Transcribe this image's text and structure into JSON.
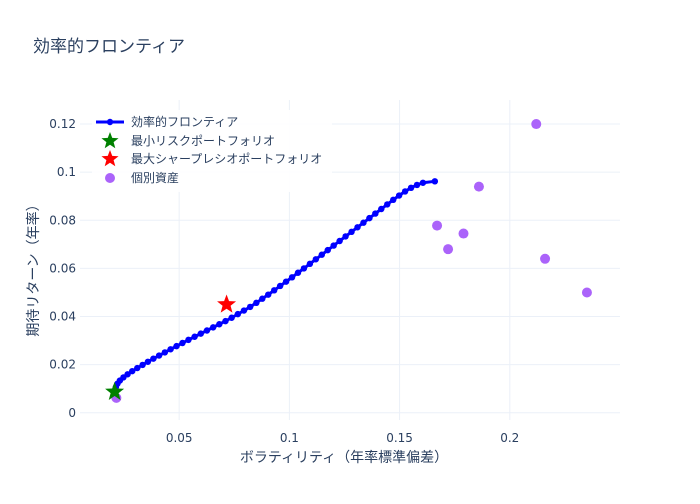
{
  "chart_data": {
    "type": "scatter",
    "title": "効率的フロンティア",
    "xlabel": "ボラティリティ（年率標準偏差）",
    "ylabel": "期待リターン（年率）",
    "xlim": [
      0.005,
      0.25
    ],
    "ylim": [
      -0.003,
      0.13
    ],
    "x_ticks": [
      0.05,
      0.1,
      0.15,
      0.2
    ],
    "x_tick_labels": [
      "0.05",
      "0.1",
      "0.15",
      "0.2"
    ],
    "y_ticks": [
      0,
      0.02,
      0.04,
      0.06,
      0.08,
      0.1,
      0.12
    ],
    "y_tick_labels": [
      "0",
      "0.02",
      "0.04",
      "0.06",
      "0.08",
      "0.1",
      "0.12"
    ],
    "grid": true,
    "legend_position": "top-left",
    "colors": {
      "frontier": "#0000ff",
      "min_risk": "#008000",
      "max_sharpe": "#ff0000",
      "assets": "#ab63fa",
      "grid": "#ebf0f8",
      "text": "#2a3f5f"
    },
    "series": [
      {
        "name": "効率的フロンティア",
        "kind": "line+markers",
        "points": [
          [
            0.0207,
            0.0087
          ],
          [
            0.0213,
            0.0107
          ],
          [
            0.022,
            0.0121
          ],
          [
            0.0231,
            0.0134
          ],
          [
            0.0247,
            0.0147
          ],
          [
            0.0266,
            0.016
          ],
          [
            0.0287,
            0.0173
          ],
          [
            0.031,
            0.0186
          ],
          [
            0.0334,
            0.0199
          ],
          [
            0.0358,
            0.0212
          ],
          [
            0.0383,
            0.0225
          ],
          [
            0.0409,
            0.0238
          ],
          [
            0.0435,
            0.0251
          ],
          [
            0.0461,
            0.0264
          ],
          [
            0.0488,
            0.0277
          ],
          [
            0.0515,
            0.029
          ],
          [
            0.0542,
            0.0303
          ],
          [
            0.057,
            0.0316
          ],
          [
            0.0598,
            0.0329
          ],
          [
            0.0626,
            0.0342
          ],
          [
            0.0654,
            0.0355
          ],
          [
            0.0682,
            0.0368
          ],
          [
            0.071,
            0.0381
          ],
          [
            0.0738,
            0.0395
          ],
          [
            0.0766,
            0.041
          ],
          [
            0.0794,
            0.0425
          ],
          [
            0.0822,
            0.044
          ],
          [
            0.085,
            0.0457
          ],
          [
            0.0877,
            0.0474
          ],
          [
            0.0904,
            0.0491
          ],
          [
            0.0931,
            0.0509
          ],
          [
            0.0958,
            0.0527
          ],
          [
            0.0985,
            0.0545
          ],
          [
            0.1012,
            0.0563
          ],
          [
            0.1039,
            0.0582
          ],
          [
            0.1066,
            0.06
          ],
          [
            0.1093,
            0.0619
          ],
          [
            0.112,
            0.0638
          ],
          [
            0.1147,
            0.0657
          ],
          [
            0.1174,
            0.0676
          ],
          [
            0.1201,
            0.0695
          ],
          [
            0.1228,
            0.0714
          ],
          [
            0.1255,
            0.0733
          ],
          [
            0.1282,
            0.0752
          ],
          [
            0.1309,
            0.0771
          ],
          [
            0.1336,
            0.079
          ],
          [
            0.1363,
            0.0809
          ],
          [
            0.139,
            0.0828
          ],
          [
            0.1417,
            0.0847
          ],
          [
            0.1444,
            0.0866
          ],
          [
            0.1471,
            0.0885
          ],
          [
            0.1498,
            0.0903
          ],
          [
            0.1525,
            0.092
          ],
          [
            0.1552,
            0.0935
          ],
          [
            0.1579,
            0.0947
          ],
          [
            0.1606,
            0.0956
          ],
          [
            0.166,
            0.0962
          ]
        ]
      },
      {
        "name": "最小リスクポートフォリオ",
        "kind": "star",
        "points": [
          [
            0.0207,
            0.0087
          ]
        ]
      },
      {
        "name": "最大シャープレシオポートフォリオ",
        "kind": "star",
        "points": [
          [
            0.0715,
            0.045
          ]
        ]
      },
      {
        "name": "個別資産",
        "kind": "markers",
        "points": [
          [
            0.0215,
            0.0062
          ],
          [
            0.167,
            0.0778
          ],
          [
            0.172,
            0.068
          ],
          [
            0.179,
            0.0745
          ],
          [
            0.186,
            0.094
          ],
          [
            0.212,
            0.12
          ],
          [
            0.216,
            0.064
          ],
          [
            0.235,
            0.05
          ]
        ]
      }
    ]
  }
}
